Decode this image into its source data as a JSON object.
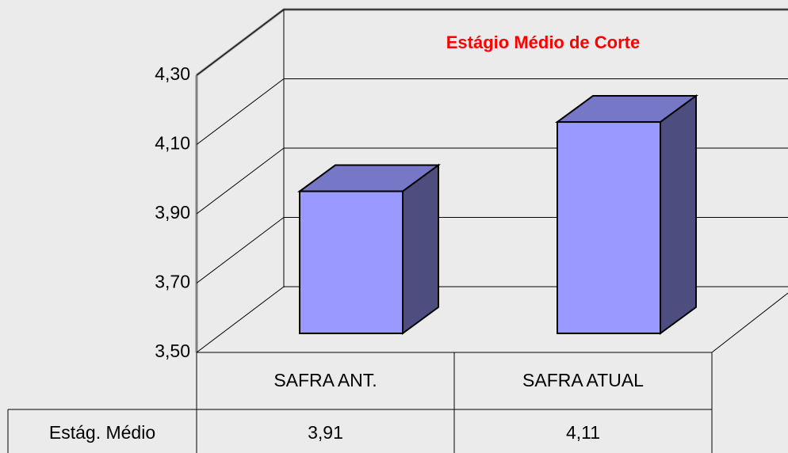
{
  "chart_data": {
    "type": "bar3d",
    "title": "Estágio Médio de Corte",
    "categories": [
      "SAFRA ANT.",
      "SAFRA ATUAL"
    ],
    "series": [
      {
        "name": "Estág. Médio",
        "color": "#9999ff",
        "values": [
          3.91,
          4.11
        ],
        "value_labels": [
          "3,91",
          "4,11"
        ]
      }
    ],
    "ylim": [
      3.5,
      4.3
    ],
    "yticks": [
      {
        "value": 3.5,
        "label": "3,50"
      },
      {
        "value": 3.7,
        "label": "3,70"
      },
      {
        "value": 3.9,
        "label": "3,90"
      },
      {
        "value": 4.1,
        "label": "4,10"
      },
      {
        "value": 4.3,
        "label": "4,30"
      }
    ],
    "grid": true
  }
}
